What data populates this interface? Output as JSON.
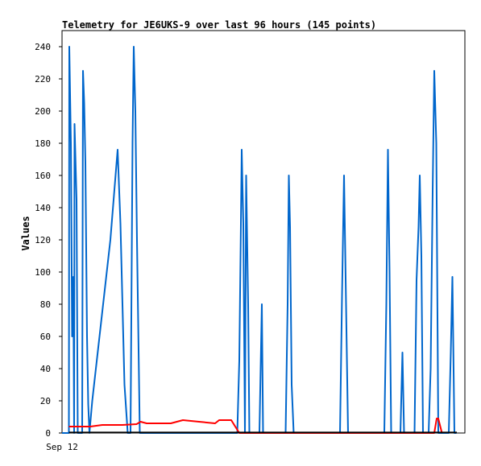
{
  "chart_data": {
    "type": "line",
    "title": "Telemetry for JE6UKS-9 over last 96 hours (145 points)",
    "xlabel": "",
    "ylabel": "Values",
    "x_tick_labels": [
      "Sep 12"
    ],
    "ylim": [
      0,
      250
    ],
    "yticks": [
      0,
      20,
      40,
      60,
      80,
      100,
      120,
      140,
      160,
      180,
      200,
      220,
      240
    ],
    "xlim": [
      0,
      100
    ],
    "grid": false,
    "legend": "none",
    "series": [
      {
        "color": "#0066cc",
        "points": [
          [
            0,
            0
          ],
          [
            1.7,
            0
          ],
          [
            1.8,
            240
          ],
          [
            2.2,
            180
          ],
          [
            2.5,
            60
          ],
          [
            2.8,
            97
          ],
          [
            3.0,
            0
          ],
          [
            3.1,
            192
          ],
          [
            3.6,
            145
          ],
          [
            3.9,
            0
          ],
          [
            5.0,
            0
          ],
          [
            5.2,
            225
          ],
          [
            5.5,
            205
          ],
          [
            5.8,
            168
          ],
          [
            6.2,
            60
          ],
          [
            6.5,
            18
          ],
          [
            6.8,
            0
          ],
          [
            7.5,
            20
          ],
          [
            12.0,
            120
          ],
          [
            13.8,
            176
          ],
          [
            14.5,
            130
          ],
          [
            15.5,
            30
          ],
          [
            16.3,
            0
          ],
          [
            17.0,
            0
          ],
          [
            17.5,
            180
          ],
          [
            17.8,
            240
          ],
          [
            18.2,
            200
          ],
          [
            18.6,
            120
          ],
          [
            19.3,
            0
          ],
          [
            41.5,
            0
          ],
          [
            42.5,
            0
          ],
          [
            43.5,
            0
          ],
          [
            44.0,
            45
          ],
          [
            44.4,
            130
          ],
          [
            44.6,
            176
          ],
          [
            45.0,
            130
          ],
          [
            45.4,
            0
          ],
          [
            45.7,
            160
          ],
          [
            46.2,
            80
          ],
          [
            46.5,
            0
          ],
          [
            49.0,
            0
          ],
          [
            49.3,
            40
          ],
          [
            49.6,
            80
          ],
          [
            49.9,
            0
          ],
          [
            55.5,
            0
          ],
          [
            56.0,
            80
          ],
          [
            56.3,
            160
          ],
          [
            56.6,
            128
          ],
          [
            57.0,
            30
          ],
          [
            57.5,
            0
          ],
          [
            69.0,
            0
          ],
          [
            69.5,
            85
          ],
          [
            70.0,
            160
          ],
          [
            70.5,
            80
          ],
          [
            71.0,
            0
          ],
          [
            80.0,
            0
          ],
          [
            80.5,
            80
          ],
          [
            80.9,
            176
          ],
          [
            81.3,
            100
          ],
          [
            81.7,
            0
          ],
          [
            84.0,
            0
          ],
          [
            84.5,
            50
          ],
          [
            84.9,
            0
          ],
          [
            87.5,
            0
          ],
          [
            88.0,
            95
          ],
          [
            88.5,
            128
          ],
          [
            88.8,
            160
          ],
          [
            89.2,
            110
          ],
          [
            89.6,
            0
          ],
          [
            91.0,
            0
          ],
          [
            91.5,
            40
          ],
          [
            92.0,
            150
          ],
          [
            92.4,
            225
          ],
          [
            92.9,
            180
          ],
          [
            93.4,
            0
          ],
          [
            96.0,
            0
          ],
          [
            96.5,
            50
          ],
          [
            96.9,
            97
          ],
          [
            97.4,
            0
          ],
          [
            97.9,
            0
          ]
        ]
      },
      {
        "color": "#ff0000",
        "points": [
          [
            1.7,
            4
          ],
          [
            7.0,
            4
          ],
          [
            10.0,
            5
          ],
          [
            15.0,
            5
          ],
          [
            18.5,
            5.5
          ],
          [
            19.5,
            7
          ],
          [
            21.0,
            6
          ],
          [
            27.0,
            6
          ],
          [
            28.5,
            7
          ],
          [
            30.0,
            8
          ],
          [
            34.0,
            7
          ],
          [
            38.0,
            6
          ],
          [
            39.0,
            8
          ],
          [
            42.0,
            8
          ],
          [
            44.0,
            0
          ],
          [
            91.0,
            0
          ],
          [
            92.4,
            0
          ],
          [
            93.0,
            9
          ],
          [
            93.4,
            9
          ],
          [
            94.3,
            0
          ]
        ]
      },
      {
        "color": "#000000",
        "points": [
          [
            1.7,
            0.3
          ],
          [
            98,
            0.3
          ]
        ]
      }
    ]
  }
}
